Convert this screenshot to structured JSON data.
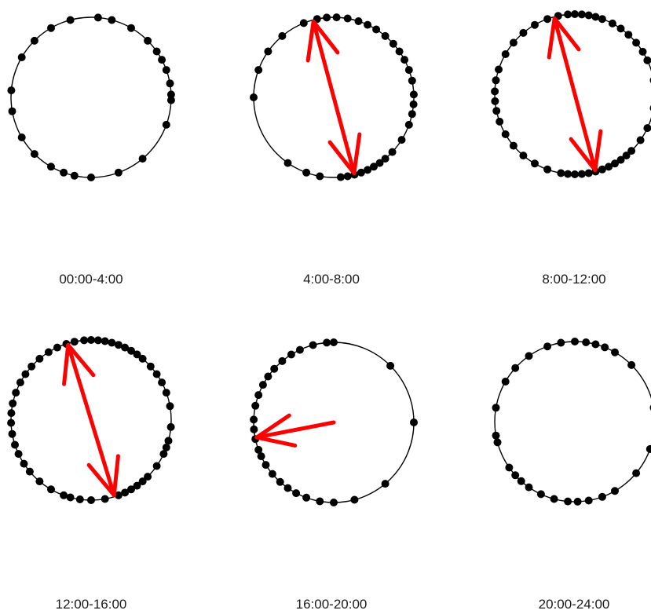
{
  "chart_data": [
    {
      "type": "scatter",
      "subtype": "circular-rose",
      "title": "00:00-4:00",
      "points_deg": [
        5,
        15,
        30,
        45,
        55,
        62,
        70,
        80,
        88,
        92,
        110,
        140,
        160,
        180,
        192,
        200,
        210,
        225,
        240,
        260,
        275,
        300,
        315,
        330,
        345
      ],
      "mean_vector": null
    },
    {
      "type": "scatter",
      "subtype": "circular-rose",
      "title": "4:00-8:00",
      "points_deg": [
        2,
        10,
        18,
        25,
        32,
        40,
        48,
        55,
        62,
        70,
        78,
        88,
        95,
        102,
        110,
        122,
        133,
        140,
        145,
        150,
        155,
        160,
        165,
        170,
        175,
        190,
        200,
        215,
        270,
        290,
        305,
        320,
        338,
        348,
        355
      ],
      "mean_vector": {
        "bidirectional": true,
        "angle_deg": 345,
        "length": 0.98
      }
    },
    {
      "type": "scatter",
      "subtype": "circular-rose",
      "title": "8:00-12:00",
      "points_deg": [
        0,
        5,
        10,
        15,
        20,
        28,
        35,
        42,
        50,
        58,
        65,
        80,
        90,
        100,
        115,
        125,
        135,
        140,
        145,
        150,
        155,
        160,
        165,
        170,
        175,
        180,
        185,
        190,
        200,
        210,
        220,
        230,
        240,
        250,
        258,
        265,
        272,
        280,
        288,
        300,
        310,
        320,
        330,
        340,
        348,
        355
      ],
      "mean_vector": {
        "bidirectional": true,
        "angle_deg": 345,
        "length": 0.98
      }
    },
    {
      "type": "scatter",
      "subtype": "circular-rose",
      "title": "12:00-16:00",
      "points_deg": [
        0,
        5,
        10,
        15,
        20,
        25,
        30,
        35,
        40,
        48,
        55,
        62,
        70,
        80,
        95,
        105,
        110,
        115,
        125,
        135,
        140,
        145,
        150,
        155,
        160,
        170,
        180,
        188,
        195,
        200,
        210,
        220,
        230,
        237,
        245,
        252,
        260,
        268,
        275,
        282,
        290,
        298,
        305,
        312,
        320,
        328,
        335,
        342,
        348,
        355
      ],
      "mean_vector": {
        "bidirectional": true,
        "angle_deg": 343,
        "length": 0.98
      }
    },
    {
      "type": "scatter",
      "subtype": "circular-rose",
      "title": "16:00-20:00",
      "points_deg": [
        0,
        355,
        345,
        335,
        328,
        320,
        312,
        305,
        298,
        290,
        282,
        272,
        265,
        258,
        250,
        245,
        238,
        230,
        222,
        215,
        208,
        200,
        190,
        180,
        165,
        140,
        90,
        45
      ],
      "mean_vector": {
        "bidirectional": false,
        "angle_deg": 259,
        "length": 0.98
      }
    },
    {
      "type": "scatter",
      "subtype": "circular-rose",
      "title": "20:00-24:00",
      "points_deg": [
        0,
        8,
        15,
        22,
        30,
        45,
        80,
        110,
        130,
        150,
        160,
        170,
        178,
        185,
        195,
        205,
        215,
        222,
        228,
        235,
        255,
        260,
        280,
        300,
        312,
        325,
        340,
        350
      ],
      "mean_vector": null
    }
  ]
}
